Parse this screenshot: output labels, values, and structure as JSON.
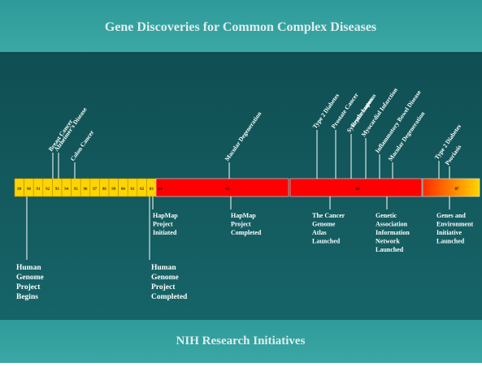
{
  "header": {
    "title": "Gene Discoveries for Common Complex Diseases"
  },
  "footer": {
    "title": "NIH Research Initiatives"
  },
  "timeline": {
    "years": [
      "89",
      "90",
      "91",
      "92",
      "93",
      "94",
      "95",
      "96",
      "97",
      "98",
      "99",
      "00",
      "01",
      "02",
      "03",
      "04",
      "05",
      "06",
      "07"
    ]
  },
  "discoveries": [
    {
      "lines": [
        "Breast Cancer"
      ]
    },
    {
      "lines": [
        "Alzheimer's Disease"
      ]
    },
    {
      "lines": [
        "Colon Cancer"
      ]
    },
    {
      "lines": [
        "Macular Degeneration"
      ]
    },
    {
      "lines": [
        "Type 2 Diabetes"
      ]
    },
    {
      "lines": [
        "Prostate Cancer"
      ]
    },
    {
      "lines": [
        "Systemic Lupus",
        "Erythematosus"
      ]
    },
    {
      "lines": [
        "Myocardial Infarction"
      ]
    },
    {
      "lines": [
        "Inflammatory Bowel Disease"
      ]
    },
    {
      "lines": [
        "Macular Degeneration"
      ]
    },
    {
      "lines": [
        "Type 2 Diabetes"
      ]
    },
    {
      "lines": [
        "Psoriasis"
      ]
    }
  ],
  "initiatives": [
    {
      "lines": [
        "Human",
        "Genome",
        "Project",
        "Begins"
      ]
    },
    {
      "lines": [
        "Human",
        "Genome",
        "Project",
        "Completed"
      ]
    },
    {
      "lines": [
        "HapMap",
        "Project",
        "Initiated"
      ]
    },
    {
      "lines": [
        "HapMap",
        "Project",
        "Completed"
      ]
    },
    {
      "lines": [
        "The Cancer",
        "Genome",
        "Atlas",
        "Launched"
      ]
    },
    {
      "lines": [
        "Genetic",
        "Association",
        "Information",
        "Network",
        "Launched"
      ]
    },
    {
      "lines": [
        "Genes and",
        "Environment",
        "Initiative",
        "Launched"
      ]
    }
  ]
}
